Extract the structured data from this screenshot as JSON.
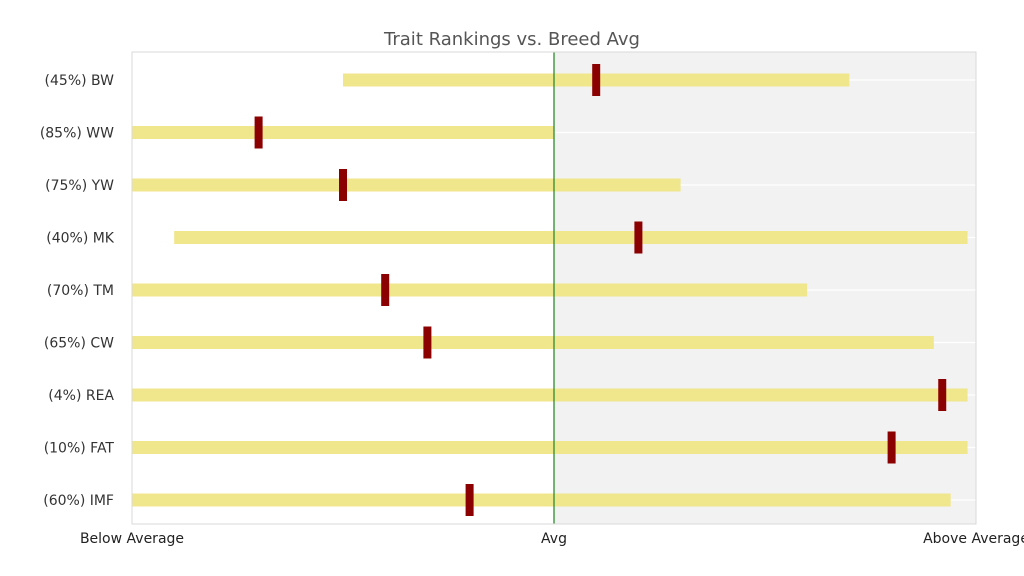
{
  "chart_data": {
    "type": "range-bar",
    "title": "Trait Rankings vs. Breed Avg",
    "x_scale": {
      "min": -1,
      "max": 1,
      "ticks": [
        {
          "value": -1,
          "label": "Below Average"
        },
        {
          "value": 0,
          "label": "Avg"
        },
        {
          "value": 1,
          "label": "Above Average"
        }
      ]
    },
    "reference_line": {
      "value": 0
    },
    "shaded_region": {
      "from": 0,
      "to": 1
    },
    "grid": true,
    "colors": {
      "bar": "#f0e68c",
      "marker": "#8b0000",
      "reference": "#2e8b2e",
      "shade": "#f2f2f2",
      "grid": "#ffffff",
      "frame": "#d9d9d9",
      "label": "#333333",
      "title": "#555555"
    },
    "traits": [
      {
        "label": "(45%) BW",
        "low": -0.5,
        "high": 0.7,
        "value": 0.1
      },
      {
        "label": "(85%) WW",
        "low": -1.0,
        "high": 0.0,
        "value": -0.7
      },
      {
        "label": "(75%) YW",
        "low": -1.0,
        "high": 0.3,
        "value": -0.5
      },
      {
        "label": "(40%) MK",
        "low": -0.9,
        "high": 0.98,
        "value": 0.2
      },
      {
        "label": "(70%) TM",
        "low": -1.0,
        "high": 0.6,
        "value": -0.4
      },
      {
        "label": "(65%) CW",
        "low": -1.0,
        "high": 0.9,
        "value": -0.3
      },
      {
        "label": "(4%) REA",
        "low": -1.0,
        "high": 0.98,
        "value": 0.92
      },
      {
        "label": "(10%) FAT",
        "low": -1.0,
        "high": 0.98,
        "value": 0.8
      },
      {
        "label": "(60%) IMF",
        "low": -1.0,
        "high": 0.94,
        "value": -0.2
      }
    ]
  }
}
